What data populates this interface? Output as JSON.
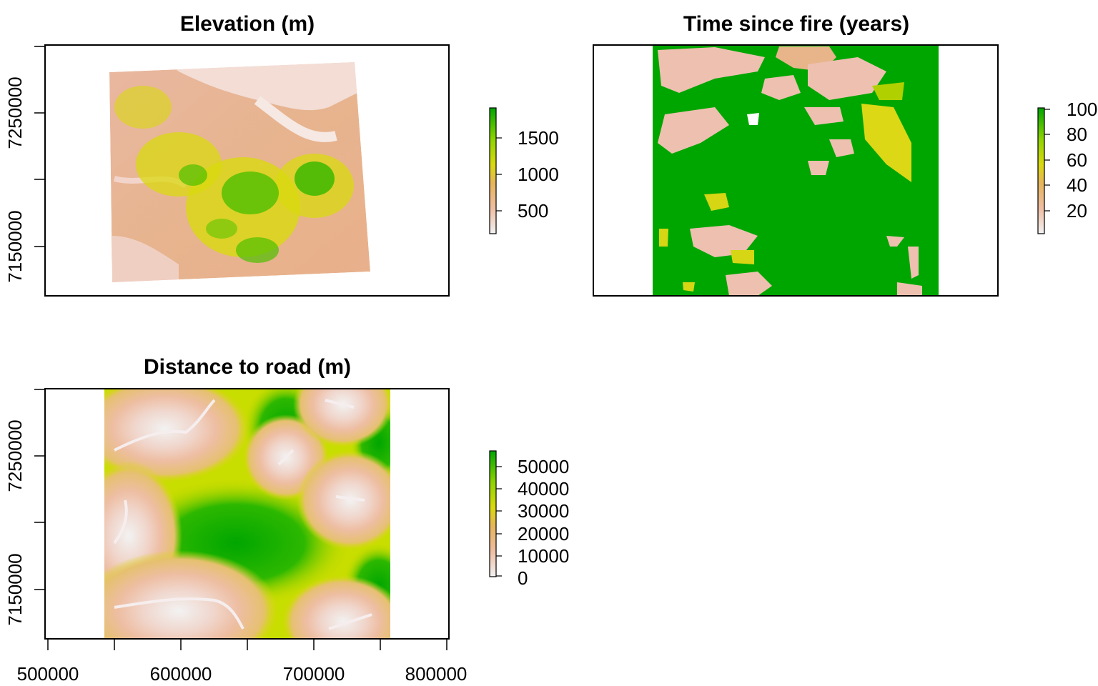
{
  "panels": [
    {
      "id": "elevation",
      "title": "Elevation (m)",
      "y_ticks": [
        "7250000",
        "7150000"
      ],
      "legend": {
        "ticks": [
          "1500",
          "1000",
          "500"
        ],
        "range": [
          200,
          1900
        ]
      }
    },
    {
      "id": "fire",
      "title": "Time since fire (years)",
      "legend": {
        "ticks": [
          "100",
          "80",
          "60",
          "40",
          "20"
        ],
        "range": [
          0,
          100
        ]
      }
    },
    {
      "id": "road",
      "title": "Distance to road (m)",
      "y_ticks": [
        "7250000",
        "7150000"
      ],
      "x_ticks": [
        "500000",
        "600000",
        "700000",
        "800000"
      ],
      "legend": {
        "ticks": [
          "50000",
          "40000",
          "30000",
          "20000",
          "10000",
          "0"
        ],
        "range": [
          0,
          56000
        ]
      }
    }
  ],
  "colors": {
    "ramp": [
      "#f2f2f2",
      "#eebea3",
      "#e6b55c",
      "#d9d90f",
      "#8ed400",
      "#2aa800",
      "#00a600"
    ]
  }
}
